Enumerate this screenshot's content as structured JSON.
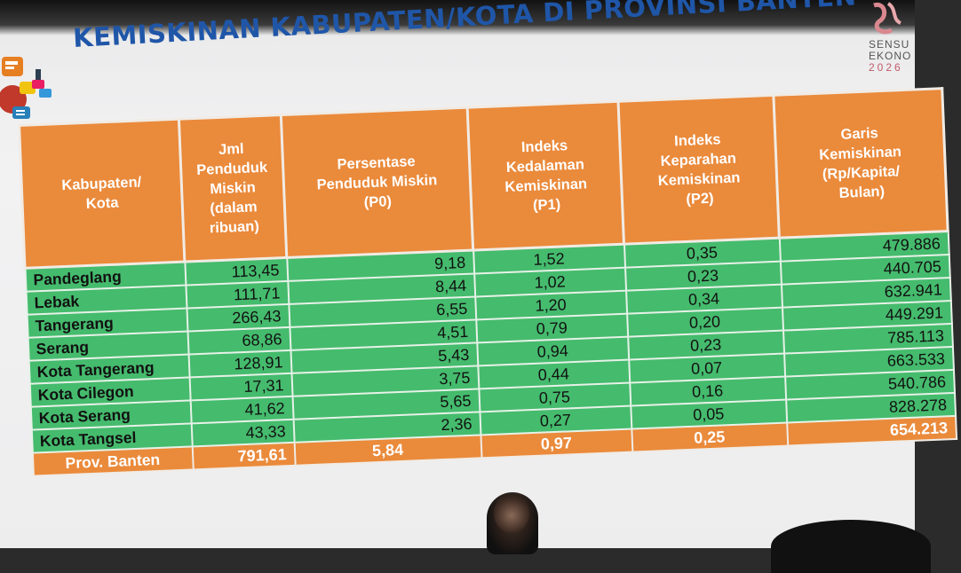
{
  "title": "KEMISKINAN KABUPATEN/KOTA DI PROVINSI BANTEN",
  "logo_right": {
    "line1": "SENSU",
    "line2": "EKONO",
    "line3": "2026"
  },
  "colors": {
    "header": "#ea8a3b",
    "row": "#45bb6d",
    "title": "#1f56a8"
  },
  "table": {
    "headers": [
      "Kabupaten/\nKota",
      "Jml\nPenduduk\nMiskin\n(dalam\nribuan)",
      "Persentase\nPenduduk Miskin\n(P0)",
      "Indeks\nKedalaman\nKemiskinan\n(P1)",
      "Indeks\nKeparahan\nKemiskinan\n(P2)",
      "Garis\nKemiskinan\n(Rp/Kapita/\nBulan)"
    ],
    "rows": [
      [
        "Pandeglang",
        "113,45",
        "9,18",
        "1,52",
        "0,35",
        "479.886"
      ],
      [
        "Lebak",
        "111,71",
        "8,44",
        "1,02",
        "0,23",
        "440.705"
      ],
      [
        "Tangerang",
        "266,43",
        "6,55",
        "1,20",
        "0,34",
        "632.941"
      ],
      [
        "Serang",
        "68,86",
        "4,51",
        "0,79",
        "0,20",
        "449.291"
      ],
      [
        "Kota Tangerang",
        "128,91",
        "5,43",
        "0,94",
        "0,23",
        "785.113"
      ],
      [
        "Kota Cilegon",
        "17,31",
        "3,75",
        "0,44",
        "0,07",
        "663.533"
      ],
      [
        "Kota Serang",
        "41,62",
        "5,65",
        "0,75",
        "0,16",
        "540.786"
      ],
      [
        "Kota Tangsel",
        "43,33",
        "2,36",
        "0,27",
        "0,05",
        "828.278"
      ]
    ],
    "total": [
      "Prov. Banten",
      "791,61",
      "5,84",
      "0,97",
      "0,25",
      "654.213"
    ]
  }
}
